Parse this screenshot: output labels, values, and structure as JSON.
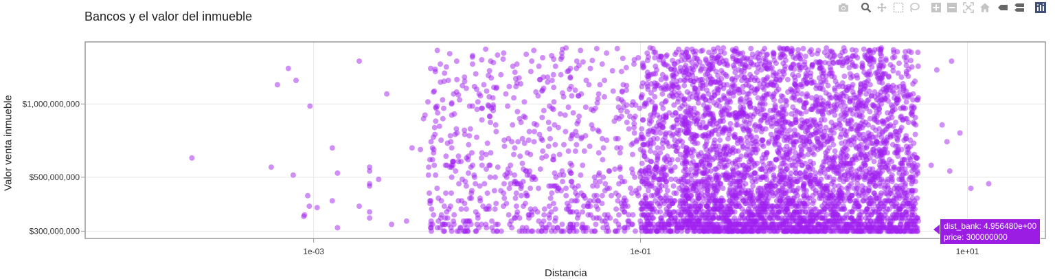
{
  "title": "Bancos y el valor del inmueble",
  "modebar": [
    {
      "name": "camera-icon"
    },
    {
      "name": "zoom-icon"
    },
    {
      "name": "pan-icon"
    },
    {
      "name": "box-select-icon"
    },
    {
      "name": "lasso-select-icon"
    },
    {
      "name": "zoom-in-icon"
    },
    {
      "name": "zoom-out-icon"
    },
    {
      "name": "autoscale-icon"
    },
    {
      "name": "reset-axes-icon"
    },
    {
      "name": "spike-lines-icon"
    },
    {
      "name": "compare-hover-icon"
    },
    {
      "name": "plotly-logo-icon"
    }
  ],
  "tooltip": {
    "line1": "dist_bank:  4.956480e+00",
    "line2": "price:  300000000"
  },
  "chart_data": {
    "type": "scatter",
    "title": "Bancos y el valor del inmueble",
    "xlabel": "Distancia",
    "ylabel": "Valor venta inmueble",
    "x_scale": "log",
    "y_scale": "log",
    "xlim": [
      4e-05,
      30
    ],
    "ylim": [
      280000000,
      1800000000
    ],
    "x_ticks": [
      {
        "value": 0.001,
        "label": "1e-03"
      },
      {
        "value": 0.1,
        "label": "1e-01"
      },
      {
        "value": 10,
        "label": "1e+01"
      }
    ],
    "y_ticks": [
      {
        "value": 300000000,
        "label": "$300,000,000"
      },
      {
        "value": 500000000,
        "label": "$500,000,000"
      },
      {
        "value": 1000000000,
        "label": "$1,000,000,000"
      }
    ],
    "grid": true,
    "marker_color": "#a020f0",
    "marker_opacity": 0.5,
    "series": [
      {
        "values_description_hidden": "",
        "points": [
          [
            0.00018,
            600000000
          ],
          [
            0.00055,
            550000000
          ],
          [
            0.00075,
            510000000
          ],
          [
            0.0006,
            1200000000
          ],
          [
            0.0007,
            1400000000
          ],
          [
            0.00078,
            1250000000
          ],
          [
            0.00095,
            980000000
          ],
          [
            0.00092,
            420000000
          ],
          [
            0.00094,
            380000000
          ],
          [
            0.00088,
            350000000
          ],
          [
            0.00087,
            345000000
          ],
          [
            0.00105,
            375000000
          ],
          [
            0.0013,
            660000000
          ],
          [
            0.0014,
            520000000
          ],
          [
            0.0013,
            400000000
          ],
          [
            0.0014,
            310000000
          ],
          [
            0.0019,
            1500000000
          ],
          [
            0.0019,
            380000000
          ],
          [
            0.0022,
            550000000
          ],
          [
            0.0022,
            530000000
          ],
          [
            0.0022,
            470000000
          ],
          [
            0.0022,
            460000000
          ],
          [
            0.0022,
            360000000
          ],
          [
            0.0022,
            340000000
          ],
          [
            0.0025,
            490000000
          ],
          [
            0.0028,
            1100000000
          ],
          [
            0.003,
            320000000
          ],
          [
            0.0037,
            330000000
          ],
          [
            0.004,
            660000000
          ],
          [
            0.0045,
            650000000
          ],
          [
            0.0047,
            870000000
          ],
          [
            0.0048,
            900000000
          ],
          [
            0.005,
            1020000000
          ],
          [
            0.0052,
            1400000000
          ],
          [
            0.0055,
            800000000
          ],
          [
            0.006,
            340000000
          ],
          [
            0.007,
            550000000
          ],
          [
            0.007,
            900000000
          ],
          [
            0.0075,
            1500000000
          ],
          [
            0.008,
            370000000
          ],
          [
            0.009,
            980000000
          ],
          [
            0.01,
            320000000
          ],
          [
            0.011,
            1200000000
          ],
          [
            0.012,
            560000000
          ],
          [
            0.013,
            820000000
          ],
          [
            0.015,
            1100000000
          ],
          [
            0.016,
            560000000
          ],
          [
            0.017,
            660000000
          ],
          [
            0.02,
            1600000000
          ],
          [
            0.022,
            500000000
          ],
          [
            0.025,
            880000000
          ],
          [
            0.028,
            720000000
          ],
          [
            0.03,
            330000000
          ],
          [
            0.035,
            1700000000
          ],
          [
            0.04,
            640000000
          ],
          [
            0.045,
            420000000
          ],
          [
            0.05,
            950000000
          ],
          [
            4.95648,
            300000000
          ],
          [
            6.5,
            1380000000
          ],
          [
            7.0,
            820000000
          ],
          [
            7.5,
            700000000
          ],
          [
            8.0,
            1500000000
          ],
          [
            9.0,
            760000000
          ],
          [
            10.5,
            450000000
          ],
          [
            13.5,
            470000000
          ],
          [
            7.8,
            530000000
          ],
          [
            6.0,
            560000000
          ]
        ]
      }
    ]
  }
}
